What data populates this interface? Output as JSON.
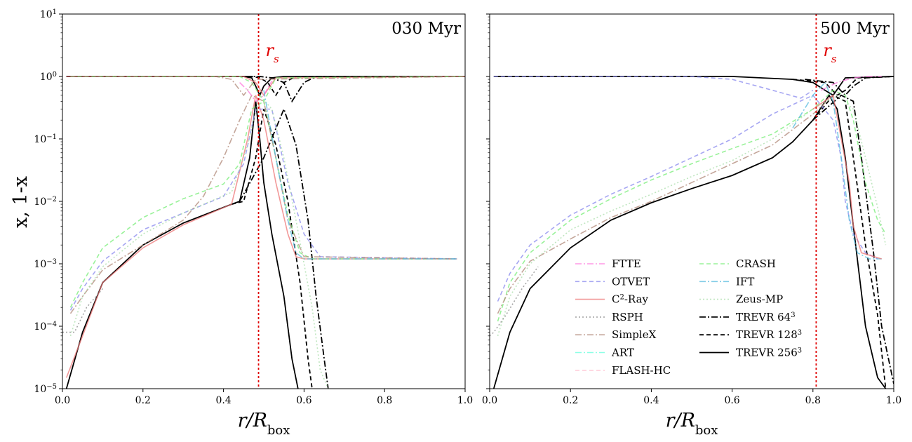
{
  "y_label": "x, 1-x",
  "legend": [
    {
      "name": "FTTE",
      "color": "#ff77dd",
      "dash": "9,3,2,3"
    },
    {
      "name": "OTVET",
      "color": "#8888ee",
      "dash": "6,4"
    },
    {
      "name": "C²-Ray",
      "color": "#ee7777",
      "dash": ""
    },
    {
      "name": "RSPH",
      "color": "#888888",
      "dash": "2,3"
    },
    {
      "name": "SimpleX",
      "color": "#b08878",
      "dash": "9,3,2,3"
    },
    {
      "name": "ART",
      "color": "#66ffdd",
      "dash": "9,3,2,3"
    },
    {
      "name": "FLASH-HC",
      "color": "#ffbbcc",
      "dash": "6,4"
    },
    {
      "name": "CRASH",
      "color": "#77ee77",
      "dash": "6,4"
    },
    {
      "name": "IFT",
      "color": "#55bbdd",
      "dash": "9,3,2,3"
    },
    {
      "name": "Zeus-MP",
      "color": "#aaddaa",
      "dash": "2,3"
    },
    {
      "name": "TREVR 64³",
      "color": "#000000",
      "dash": "9,3,2,3"
    },
    {
      "name": "TREVR 128³",
      "color": "#000000",
      "dash": "6,4"
    },
    {
      "name": "TREVR 256³",
      "color": "#000000",
      "dash": ""
    }
  ],
  "chart_data": [
    {
      "type": "line",
      "panel_label": "030 Myr",
      "xlabel": "r/R_box",
      "ylabel": "x, 1-x",
      "xlim": [
        0,
        1
      ],
      "ylim": [
        1e-05,
        10
      ],
      "yscale": "log",
      "x_ticks": [
        "0.0",
        "0.2",
        "0.4",
        "0.6",
        "0.8",
        "1.0"
      ],
      "y_ticks": [
        "10^-5",
        "10^-4",
        "10^-3",
        "10^-2",
        "10^-1",
        "10^0",
        "10^1"
      ],
      "rs_label": "r_s",
      "rs_x": 0.487,
      "series": [
        {
          "name": "TREVR 256³",
          "x": [
            0.01,
            0.05,
            0.1,
            0.2,
            0.3,
            0.42,
            0.44,
            0.465,
            0.48,
            0.49,
            0.5,
            0.52,
            0.55,
            0.57,
            0.585
          ],
          "y": [
            1e-05,
            8e-05,
            0.0005,
            0.002,
            0.0045,
            0.009,
            0.01,
            0.05,
            0.4,
            0.1,
            0.02,
            0.003,
            0.0003,
            3e-05,
            1e-05
          ]
        },
        {
          "name": "TREVR 256³",
          "x": [
            0.01,
            0.3,
            0.45,
            0.47,
            0.48,
            0.49,
            0.5,
            0.52,
            0.55,
            1.0
          ],
          "y": [
            1,
            1,
            1,
            0.95,
            0.7,
            0.5,
            0.7,
            0.95,
            1,
            1
          ]
        },
        {
          "name": "TREVR 128³",
          "x": [
            0.42,
            0.45,
            0.48,
            0.5,
            0.53,
            0.56,
            0.59,
            0.61,
            0.62
          ],
          "y": [
            0.009,
            0.01,
            0.05,
            0.3,
            0.08,
            0.01,
            0.0005,
            3e-05,
            1e-05
          ]
        },
        {
          "name": "TREVR 128³",
          "x": [
            0.01,
            0.47,
            0.49,
            0.51,
            0.53,
            0.55,
            0.58,
            1.0
          ],
          "y": [
            1,
            1,
            0.95,
            0.8,
            0.5,
            0.8,
            1,
            1
          ]
        },
        {
          "name": "TREVR 64³",
          "x": [
            0.44,
            0.5,
            0.55,
            0.58,
            0.61,
            0.63,
            0.65,
            0.66
          ],
          "y": [
            0.01,
            0.05,
            0.3,
            0.08,
            0.005,
            0.0003,
            3e-05,
            1e-05
          ]
        },
        {
          "name": "TREVR 64³",
          "x": [
            0.01,
            0.49,
            0.52,
            0.55,
            0.57,
            0.6,
            0.63,
            1.0
          ],
          "y": [
            1,
            1,
            0.95,
            0.8,
            0.4,
            0.8,
            1,
            1
          ]
        },
        {
          "name": "C²-Ray",
          "x": [
            0.01,
            0.05,
            0.1,
            0.2,
            0.3,
            0.42,
            0.46,
            0.48,
            0.5,
            0.53,
            0.56,
            0.58,
            0.6,
            0.98
          ],
          "y": [
            1.5e-05,
            7e-05,
            0.0005,
            0.0018,
            0.0042,
            0.009,
            0.1,
            0.5,
            0.2,
            0.02,
            0.003,
            0.0013,
            0.0012,
            0.0012
          ]
        },
        {
          "name": "C²-Ray",
          "x": [
            0.01,
            0.45,
            0.48,
            0.5,
            0.53,
            1.0
          ],
          "y": [
            1,
            1,
            0.8,
            0.5,
            0.95,
            1
          ]
        },
        {
          "name": "CRASH",
          "x": [
            0.02,
            0.05,
            0.1,
            0.2,
            0.3,
            0.4,
            0.44,
            0.47,
            0.5,
            0.53,
            0.56,
            0.59,
            0.62,
            0.98
          ],
          "y": [
            0.0002,
            0.0005,
            0.0018,
            0.0055,
            0.011,
            0.019,
            0.04,
            0.3,
            0.4,
            0.05,
            0.006,
            0.0015,
            0.0012,
            0.0012
          ]
        },
        {
          "name": "CRASH",
          "x": [
            0.02,
            0.44,
            0.47,
            0.5,
            0.53,
            1.0
          ],
          "y": [
            1,
            1,
            0.8,
            0.4,
            0.95,
            1
          ]
        },
        {
          "name": "OTVET",
          "x": [
            0.02,
            0.05,
            0.1,
            0.2,
            0.3,
            0.4,
            0.45,
            0.48,
            0.52,
            0.56,
            0.6,
            0.64,
            0.98
          ],
          "y": [
            0.00018,
            0.0004,
            0.0011,
            0.0035,
            0.0065,
            0.012,
            0.04,
            0.3,
            0.3,
            0.02,
            0.003,
            0.0013,
            0.0012
          ]
        },
        {
          "name": "SimpleX",
          "x": [
            0.02,
            0.05,
            0.1,
            0.2,
            0.3,
            0.35,
            0.4,
            0.44,
            0.47,
            0.5,
            0.53,
            0.56,
            0.6,
            0.98
          ],
          "y": [
            0.00016,
            0.0003,
            0.0008,
            0.002,
            0.005,
            0.012,
            0.05,
            0.2,
            0.5,
            0.4,
            0.05,
            0.005,
            0.0013,
            0.0012
          ]
        },
        {
          "name": "SimpleX",
          "x": [
            0.02,
            0.38,
            0.42,
            0.45,
            0.48,
            1.0
          ],
          "y": [
            1,
            1,
            0.9,
            0.5,
            0.9,
            1
          ]
        },
        {
          "name": "Zeus-MP",
          "x": [
            0.02,
            0.05,
            0.1,
            0.2,
            0.3,
            0.42,
            0.46,
            0.49,
            0.52,
            0.55,
            0.58,
            0.62,
            0.64,
            0.66
          ],
          "y": [
            7e-05,
            0.0003,
            0.0009,
            0.003,
            0.0065,
            0.014,
            0.08,
            0.5,
            0.3,
            0.05,
            0.005,
            0.0002,
            2e-05,
            1e-05
          ]
        },
        {
          "name": "RSPH",
          "x": [
            0.0,
            0.03,
            0.06,
            0.1
          ],
          "y": [
            8e-05,
            8e-05,
            0.0002,
            0.0004
          ]
        },
        {
          "name": "FTTE",
          "x": [
            0.44,
            0.46,
            0.48,
            0.5,
            0.52
          ],
          "y": [
            0.8,
            0.6,
            0.4,
            0.5,
            0.85
          ]
        },
        {
          "name": "IFT",
          "x": [
            0.5,
            0.53,
            0.56,
            0.58,
            0.6,
            0.98
          ],
          "y": [
            0.6,
            0.05,
            0.005,
            0.0015,
            0.0012,
            0.0012
          ]
        }
      ]
    },
    {
      "type": "line",
      "panel_label": "500 Myr",
      "xlabel": "r/R_box",
      "xlim": [
        0,
        1
      ],
      "ylim": [
        1e-05,
        10
      ],
      "yscale": "log",
      "x_ticks": [
        "0.0",
        "0.2",
        "0.4",
        "0.6",
        "0.8",
        "1.0"
      ],
      "rs_label": "r_s",
      "rs_x": 0.808,
      "series": [
        {
          "name": "TREVR 256³",
          "x": [
            0.01,
            0.05,
            0.1,
            0.2,
            0.3,
            0.4,
            0.5,
            0.6,
            0.7,
            0.75,
            0.8,
            0.84,
            0.86,
            0.88,
            0.9,
            0.93,
            0.96,
            0.98
          ],
          "y": [
            1e-05,
            8e-05,
            0.0004,
            0.0018,
            0.005,
            0.0095,
            0.016,
            0.026,
            0.05,
            0.09,
            0.2,
            0.5,
            0.3,
            0.05,
            0.004,
            0.0001,
            1.5e-05,
            1e-05
          ]
        },
        {
          "name": "TREVR 256³",
          "x": [
            0.01,
            0.6,
            0.75,
            0.8,
            0.83,
            0.85,
            0.88,
            1.0
          ],
          "y": [
            1,
            1,
            0.9,
            0.8,
            0.6,
            0.5,
            0.95,
            1
          ]
        },
        {
          "name": "TREVR 128³",
          "x": [
            0.8,
            0.85,
            0.88,
            0.9,
            0.93,
            0.96,
            0.98
          ],
          "y": [
            0.2,
            0.5,
            0.4,
            0.05,
            0.002,
            0.00015,
            1e-05
          ]
        },
        {
          "name": "TREVR 128³",
          "x": [
            0.75,
            0.83,
            0.86,
            0.88,
            0.91,
            1.0
          ],
          "y": [
            0.9,
            0.8,
            0.5,
            0.6,
            0.95,
            1
          ]
        },
        {
          "name": "TREVR 64³",
          "x": [
            0.8,
            0.87,
            0.9,
            0.92,
            0.95,
            0.97,
            1.0
          ],
          "y": [
            0.2,
            0.5,
            0.4,
            0.05,
            0.0015,
            0.0001,
            1.2e-05
          ]
        },
        {
          "name": "TREVR 64³",
          "x": [
            0.78,
            0.85,
            0.88,
            0.9,
            0.93,
            1.0
          ],
          "y": [
            0.9,
            0.8,
            0.5,
            0.7,
            0.95,
            1
          ]
        },
        {
          "name": "OTVET",
          "x": [
            0.02,
            0.05,
            0.1,
            0.2,
            0.3,
            0.4,
            0.5,
            0.6,
            0.7,
            0.8,
            0.85,
            0.87,
            0.88,
            0.9,
            0.93,
            0.96
          ],
          "y": [
            0.00025,
            0.0007,
            0.002,
            0.006,
            0.013,
            0.025,
            0.05,
            0.1,
            0.25,
            0.5,
            0.2,
            0.05,
            0.01,
            0.003,
            0.0015,
            0.0012
          ]
        },
        {
          "name": "OTVET",
          "x": [
            0.01,
            0.5,
            0.6,
            0.7,
            0.77,
            0.8
          ],
          "y": [
            1,
            1,
            0.9,
            0.6,
            0.45,
            0.6
          ]
        },
        {
          "name": "CRASH",
          "x": [
            0.02,
            0.05,
            0.1,
            0.2,
            0.3,
            0.4,
            0.5,
            0.6,
            0.7,
            0.8,
            0.85,
            0.88,
            0.9,
            0.93,
            0.96,
            0.98
          ],
          "y": [
            0.00012,
            0.0005,
            0.0015,
            0.005,
            0.011,
            0.022,
            0.04,
            0.07,
            0.12,
            0.3,
            0.6,
            0.5,
            0.2,
            0.02,
            0.005,
            0.003
          ]
        },
        {
          "name": "SimpleX",
          "x": [
            0.02,
            0.05,
            0.1,
            0.2,
            0.3,
            0.4,
            0.5,
            0.6,
            0.7,
            0.8,
            0.85
          ],
          "y": [
            0.00016,
            0.0004,
            0.0011,
            0.0025,
            0.0055,
            0.01,
            0.02,
            0.04,
            0.08,
            0.25,
            0.5
          ]
        },
        {
          "name": "Zeus-MP",
          "x": [
            0.02,
            0.05,
            0.1,
            0.2,
            0.3,
            0.4,
            0.5,
            0.6,
            0.7,
            0.8,
            0.86,
            0.9,
            0.93,
            0.96,
            0.98
          ],
          "y": [
            7e-05,
            0.0003,
            0.001,
            0.0035,
            0.007,
            0.013,
            0.025,
            0.045,
            0.1,
            0.3,
            0.5,
            0.3,
            0.05,
            0.008,
            0.002
          ]
        },
        {
          "name": "IFT",
          "x": [
            0.75,
            0.8,
            0.83,
            0.85,
            0.87,
            0.89,
            0.91,
            0.94,
            0.97
          ],
          "y": [
            0.15,
            0.5,
            0.8,
            0.4,
            0.05,
            0.005,
            0.0015,
            0.0012,
            0.0012
          ]
        },
        {
          "name": "C²-Ray",
          "x": [
            0.8,
            0.85,
            0.87,
            0.89,
            0.9,
            0.92,
            0.97
          ],
          "y": [
            0.3,
            0.5,
            0.1,
            0.02,
            0.004,
            0.0015,
            0.0012
          ]
        },
        {
          "name": "RSPH",
          "x": [
            0.0,
            0.01,
            0.04,
            0.08,
            0.12
          ],
          "y": [
            7e-05,
            8e-05,
            0.00015,
            0.0004,
            0.0009
          ]
        },
        {
          "name": "FTTE",
          "x": [
            0.82,
            0.86,
            0.9,
            0.93,
            0.97
          ],
          "y": [
            0.6,
            0.8,
            0.95,
            1.0,
            1.0
          ]
        }
      ]
    }
  ]
}
